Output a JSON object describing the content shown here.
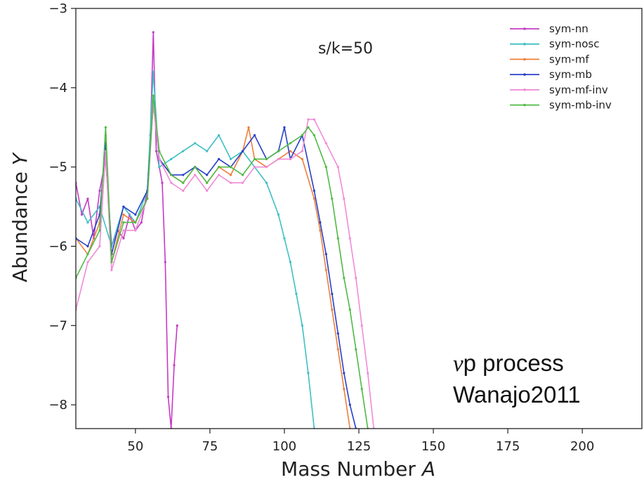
{
  "chart_data": {
    "type": "line",
    "xlabel": "Mass Number",
    "xlabel_var": "A",
    "ylabel": "Abundance",
    "ylabel_var": "Y",
    "xlim": [
      30,
      220
    ],
    "ylim": [
      -8.3,
      -3
    ],
    "xticks": [
      50,
      75,
      100,
      125,
      150,
      175,
      200
    ],
    "yticks": [
      -8,
      -7,
      -6,
      -5,
      -4,
      -3
    ],
    "grid": false,
    "legend_position": "top-right",
    "annotations": {
      "top": "s/k=50",
      "process_symbol": "ν",
      "process_line1": "p process",
      "process_line2": "Wanajo2011"
    },
    "series": [
      {
        "name": "sym-nn",
        "color": "#c43bc4",
        "x": [
          30,
          32,
          34,
          36,
          38,
          40,
          42,
          44,
          46,
          48,
          50,
          52,
          54,
          55,
          56,
          57,
          58,
          59,
          60,
          61,
          62,
          63,
          64
        ],
        "y": [
          -5.2,
          -5.6,
          -5.4,
          -5.9,
          -5.3,
          -4.9,
          -6.0,
          -5.8,
          -5.9,
          -5.6,
          -5.8,
          -5.7,
          -5.3,
          -4.6,
          -3.3,
          -4.8,
          -5.0,
          -5.2,
          -6.2,
          -7.9,
          -8.3,
          -7.5,
          -7.0
        ]
      },
      {
        "name": "sym-nosc",
        "color": "#3fbfc4",
        "x": [
          30,
          34,
          38,
          42,
          46,
          50,
          54,
          56,
          58,
          62,
          66,
          70,
          74,
          78,
          82,
          86,
          90,
          94,
          98,
          100,
          102,
          104,
          106,
          108,
          110
        ],
        "y": [
          -5.4,
          -5.7,
          -5.5,
          -6.0,
          -5.5,
          -5.7,
          -5.3,
          -3.8,
          -5.0,
          -4.9,
          -4.8,
          -4.7,
          -4.8,
          -4.6,
          -4.9,
          -4.8,
          -5.0,
          -5.2,
          -5.6,
          -5.9,
          -6.2,
          -6.6,
          -7.0,
          -7.6,
          -8.3
        ]
      },
      {
        "name": "sym-mf",
        "color": "#ee7f3b",
        "x": [
          30,
          34,
          38,
          40,
          42,
          46,
          50,
          54,
          56,
          58,
          62,
          66,
          70,
          74,
          78,
          82,
          86,
          88,
          90,
          94,
          98,
          102,
          106,
          110,
          112,
          114,
          116,
          118,
          120,
          122
        ],
        "y": [
          -5.9,
          -6.1,
          -5.7,
          -4.6,
          -6.2,
          -5.6,
          -5.7,
          -5.4,
          -4.1,
          -4.9,
          -5.1,
          -5.2,
          -5.0,
          -5.2,
          -5.0,
          -5.1,
          -4.8,
          -4.5,
          -4.9,
          -5.0,
          -4.9,
          -4.8,
          -4.9,
          -5.4,
          -5.8,
          -6.3,
          -6.8,
          -7.3,
          -7.8,
          -8.3
        ]
      },
      {
        "name": "sym-mb",
        "color": "#2940c8",
        "x": [
          30,
          34,
          38,
          40,
          42,
          46,
          50,
          54,
          56,
          58,
          62,
          66,
          70,
          74,
          78,
          82,
          86,
          90,
          94,
          98,
          100,
          102,
          106,
          110,
          112,
          114,
          116,
          118,
          120,
          122,
          124
        ],
        "y": [
          -5.9,
          -6.0,
          -5.6,
          -4.7,
          -6.1,
          -5.5,
          -5.6,
          -5.3,
          -4.2,
          -4.9,
          -5.1,
          -5.1,
          -5.0,
          -5.1,
          -4.9,
          -5.0,
          -4.8,
          -4.6,
          -4.9,
          -4.8,
          -4.5,
          -4.9,
          -4.6,
          -5.3,
          -5.7,
          -6.1,
          -6.6,
          -7.1,
          -7.6,
          -8.0,
          -8.3
        ]
      },
      {
        "name": "sym-mf-inv",
        "color": "#f08bd6",
        "x": [
          30,
          34,
          38,
          40,
          42,
          46,
          50,
          54,
          56,
          58,
          62,
          66,
          70,
          74,
          78,
          82,
          86,
          90,
          94,
          98,
          102,
          106,
          108,
          110,
          114,
          118,
          120,
          122,
          124,
          126,
          128,
          130
        ],
        "y": [
          -6.8,
          -6.2,
          -6.0,
          -4.8,
          -6.3,
          -5.8,
          -5.8,
          -5.4,
          -4.2,
          -4.9,
          -5.2,
          -5.3,
          -5.1,
          -5.3,
          -5.1,
          -5.2,
          -5.2,
          -5.0,
          -5.0,
          -4.9,
          -4.9,
          -4.8,
          -4.4,
          -4.4,
          -4.7,
          -5.0,
          -5.4,
          -5.9,
          -6.4,
          -7.0,
          -7.6,
          -8.3
        ]
      },
      {
        "name": "sym-mb-inv",
        "color": "#4fba45",
        "x": [
          30,
          34,
          38,
          40,
          42,
          46,
          50,
          54,
          56,
          58,
          62,
          66,
          70,
          74,
          78,
          82,
          86,
          90,
          94,
          98,
          102,
          106,
          108,
          110,
          114,
          116,
          118,
          120,
          122,
          124,
          126,
          128
        ],
        "y": [
          -6.4,
          -6.1,
          -5.8,
          -4.5,
          -6.2,
          -5.7,
          -5.7,
          -5.4,
          -4.1,
          -4.8,
          -5.1,
          -5.2,
          -5.0,
          -5.2,
          -5.0,
          -5.0,
          -5.1,
          -4.9,
          -4.9,
          -4.8,
          -4.7,
          -4.6,
          -4.5,
          -4.6,
          -5.0,
          -5.4,
          -5.9,
          -6.4,
          -6.8,
          -7.3,
          -7.8,
          -8.3
        ]
      }
    ]
  }
}
